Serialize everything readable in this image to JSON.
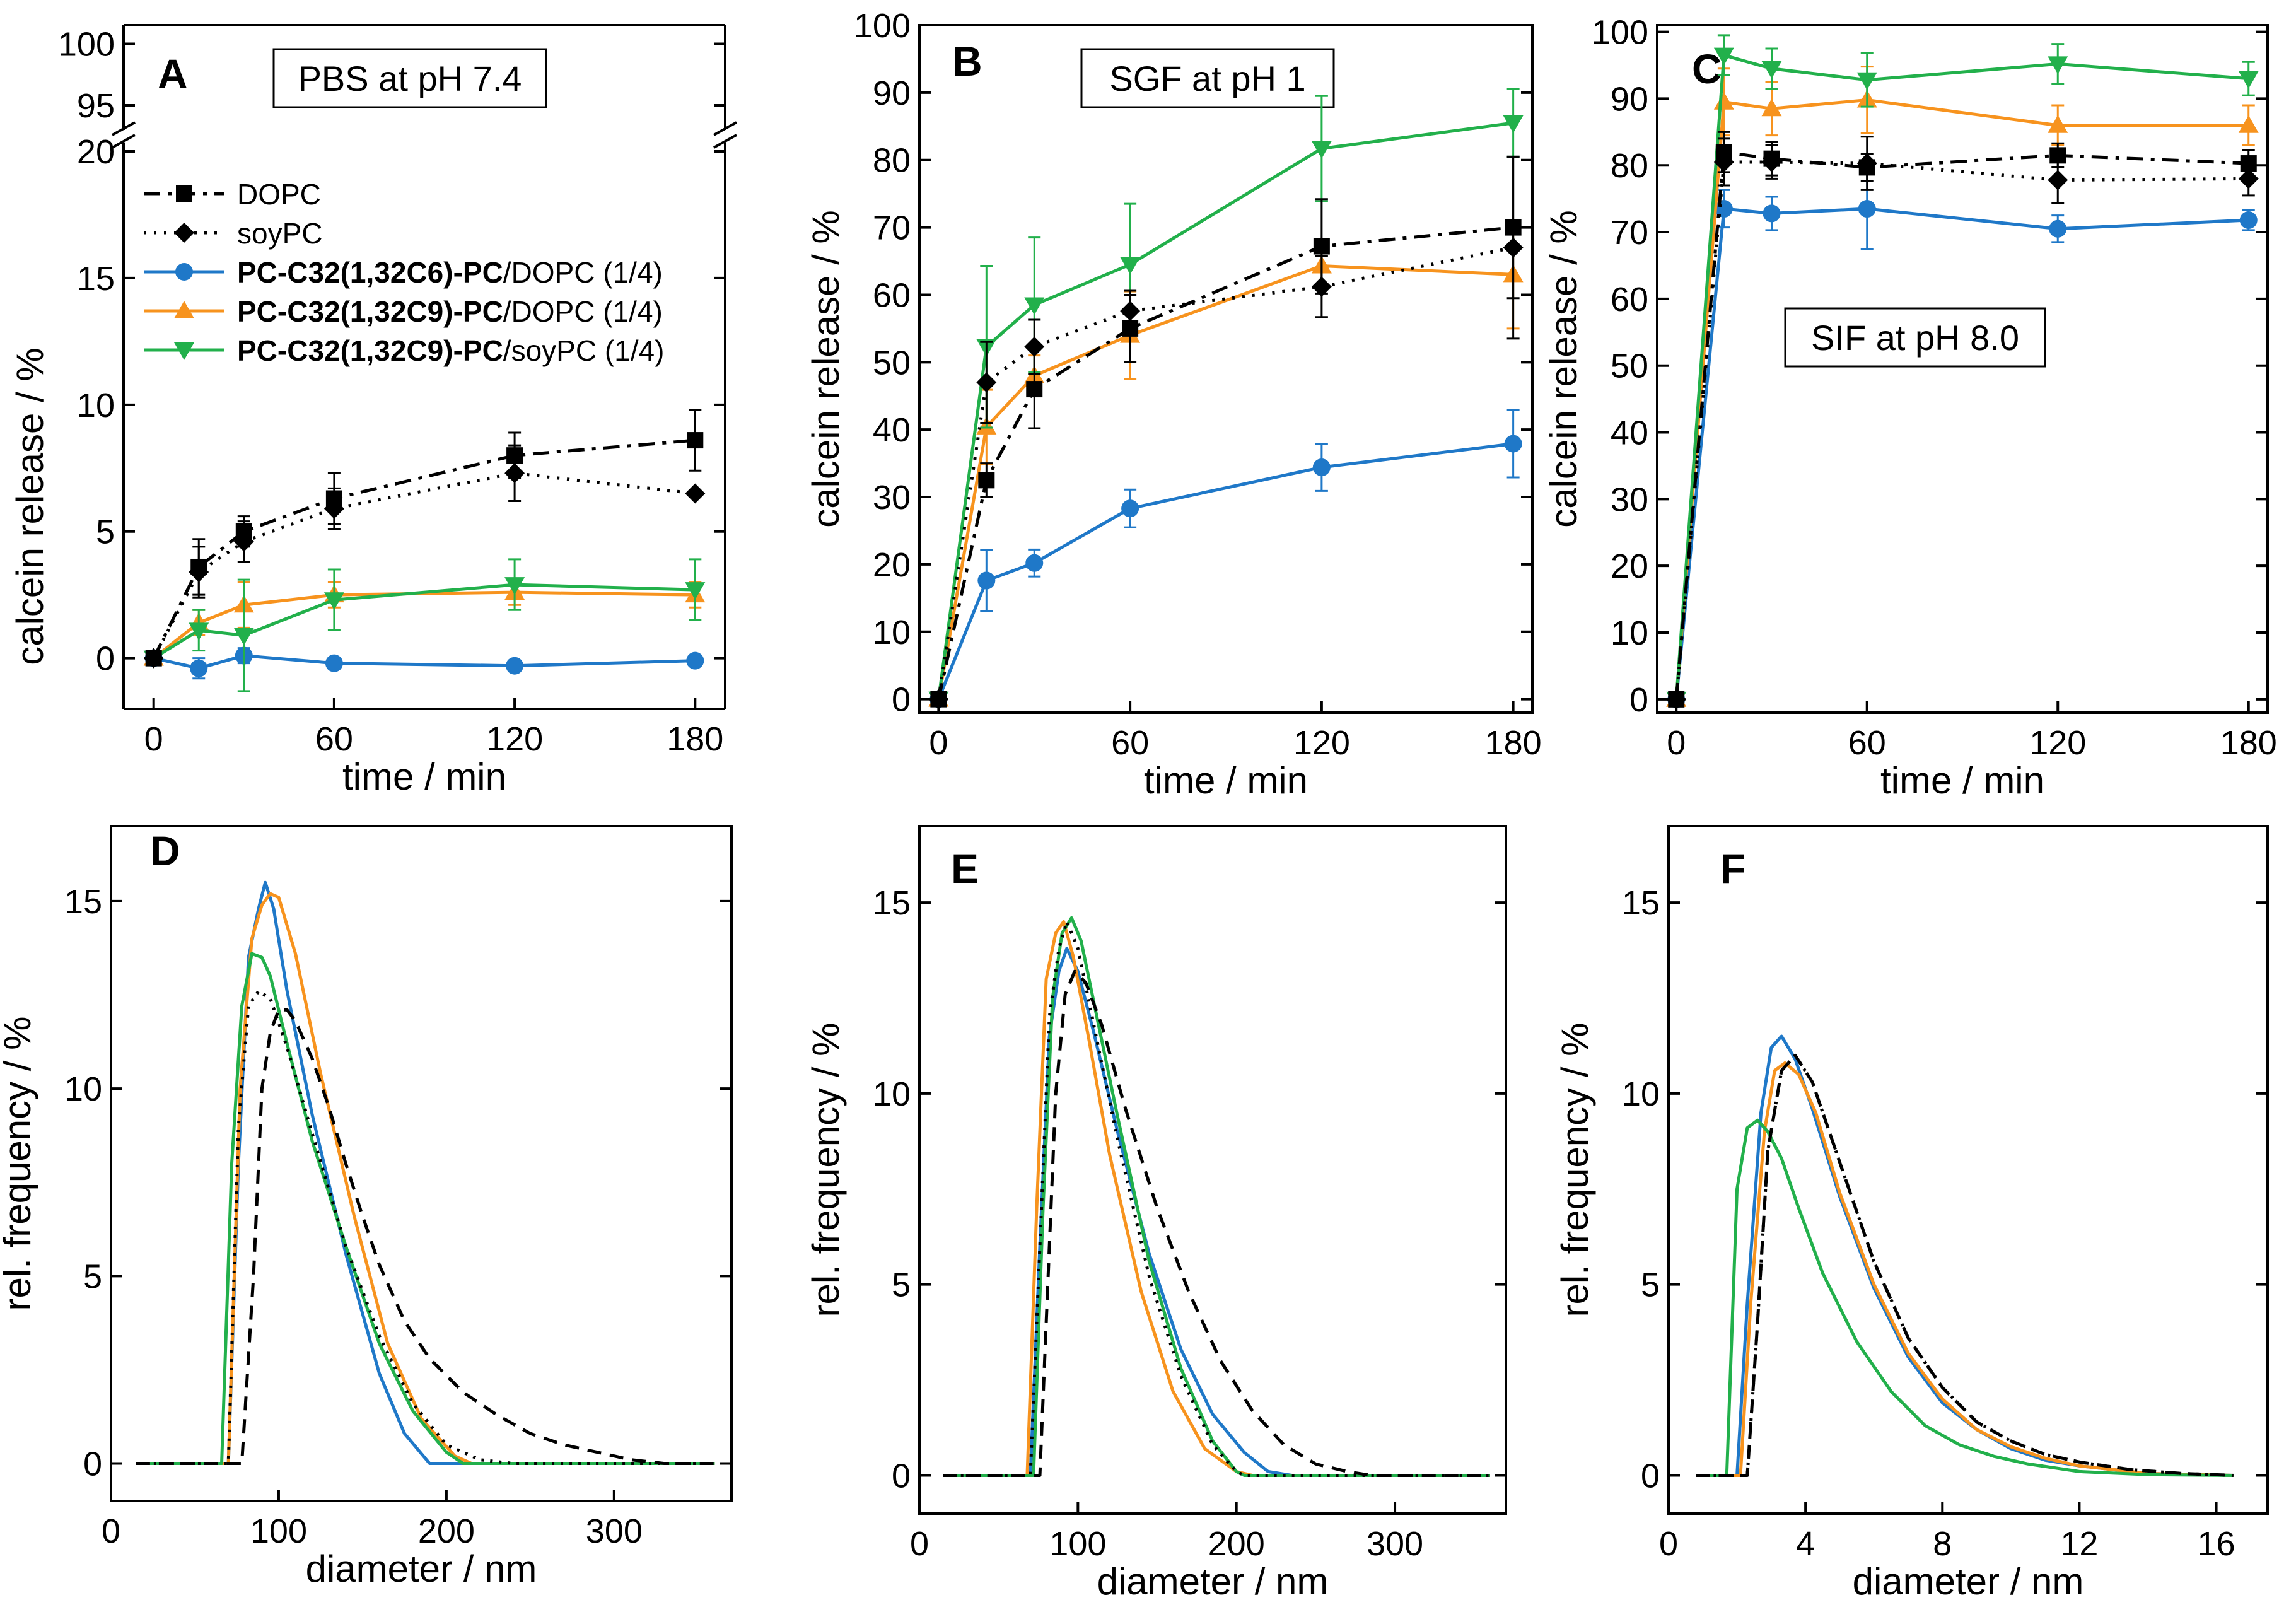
{
  "colors": {
    "black": "#000000",
    "blue": "#1f78c8",
    "orange": "#f7931e",
    "green": "#22b04b"
  },
  "series_names": [
    "DOPC",
    "soyPC",
    "PC-C32(1,32C6)-PC/DOPC (1/4)",
    "PC-C32(1,32C9)-PC/DOPC (1/4)",
    "PC-C32(1,32C9)-PC/soyPC (1/4)"
  ],
  "legend": [
    {
      "bold": "",
      "rest": "DOPC",
      "color": "#000000",
      "dash": "dashdot",
      "marker": "square"
    },
    {
      "bold": "",
      "rest": "soyPC",
      "color": "#000000",
      "dash": "dot",
      "marker": "diamond"
    },
    {
      "bold": "PC-C32(1,32C6)-PC",
      "rest": "/DOPC (1/4)",
      "color": "#1f78c8",
      "dash": "solid",
      "marker": "circle"
    },
    {
      "bold": "PC-C32(1,32C9)-PC",
      "rest": "/DOPC (1/4)",
      "color": "#f7931e",
      "dash": "solid",
      "marker": "triangle-up"
    },
    {
      "bold": "PC-C32(1,32C9)-PC",
      "rest": "/soyPC (1/4)",
      "color": "#22b04b",
      "dash": "solid",
      "marker": "triangle-down"
    }
  ],
  "chart_data": [
    {
      "panel": "A",
      "type": "line",
      "title": "PBS at pH 7.4",
      "xlabel": "time / min",
      "ylabel": "calcein release / %",
      "xlim": [
        -10,
        190
      ],
      "xticks": [
        0,
        60,
        120,
        180
      ],
      "ylim": [
        -2,
        20
      ],
      "yticks": [
        0,
        5,
        10,
        15,
        20
      ],
      "ybreak": {
        "upper_range": [
          93,
          101
        ],
        "upper_ticks": [
          95,
          100
        ]
      },
      "x": [
        0,
        15,
        30,
        60,
        120,
        180
      ],
      "series": [
        {
          "name": "DOPC",
          "values": [
            0,
            3.6,
            5.0,
            6.3,
            8.0,
            8.6
          ],
          "err": [
            0,
            1.1,
            0.6,
            1.0,
            0.9,
            1.2
          ]
        },
        {
          "name": "soyPC",
          "values": [
            0,
            3.4,
            4.6,
            5.9,
            7.3,
            6.5
          ],
          "err": [
            0,
            1.0,
            0.8,
            0.8,
            1.1,
            0.0
          ]
        },
        {
          "name": "PC-C32(1,32C6)-PC/DOPC (1/4)",
          "values": [
            0,
            -0.4,
            0.1,
            -0.2,
            -0.3,
            -0.1
          ],
          "err": [
            0,
            0.4,
            0.3,
            0.2,
            0.1,
            0.1
          ]
        },
        {
          "name": "PC-C32(1,32C9)-PC/DOPC (1/4)",
          "values": [
            0,
            1.4,
            2.1,
            2.5,
            2.6,
            2.5
          ],
          "err": [
            0,
            0.5,
            0.9,
            0.5,
            0.5,
            0.5
          ]
        },
        {
          "name": "PC-C32(1,32C9)-PC/soyPC (1/4)",
          "values": [
            0,
            1.1,
            0.9,
            2.3,
            2.9,
            2.7
          ],
          "err": [
            0,
            0.8,
            2.2,
            1.2,
            1.0,
            1.2
          ]
        }
      ]
    },
    {
      "panel": "B",
      "type": "line",
      "title": "SGF at pH 1",
      "xlabel": "time / min",
      "ylabel": "calcein release / %",
      "xlim": [
        -6,
        186
      ],
      "xticks": [
        0,
        60,
        120,
        180
      ],
      "ylim": [
        -2,
        100
      ],
      "yticks": [
        0,
        10,
        20,
        30,
        40,
        50,
        60,
        70,
        80,
        90,
        100
      ],
      "x": [
        0,
        15,
        30,
        60,
        120,
        180
      ],
      "series": [
        {
          "name": "DOPC",
          "values": [
            0,
            32.5,
            46.0,
            55.0,
            67.2,
            70.0
          ],
          "err": [
            0,
            2.5,
            5.8,
            5.0,
            7.0,
            10.5
          ]
        },
        {
          "name": "soyPC",
          "values": [
            0,
            47.0,
            52.3,
            57.6,
            61.2,
            67.0
          ],
          "err": [
            0,
            6.0,
            4.0,
            3.0,
            4.5,
            13.5
          ]
        },
        {
          "name": "PC-C32(1,32C6)-PC/DOPC (1/4)",
          "values": [
            0,
            17.6,
            20.2,
            28.3,
            34.4,
            37.9
          ],
          "err": [
            0,
            4.5,
            2.0,
            2.8,
            3.5,
            5.0
          ]
        },
        {
          "name": "PC-C32(1,32C9)-PC/DOPC (1/4)",
          "values": [
            0,
            40.4,
            48.0,
            54.0,
            64.3,
            63.0
          ],
          "err": [
            0,
            5.5,
            3.0,
            6.5,
            3.0,
            8.0
          ]
        },
        {
          "name": "PC-C32(1,32C9)-PC/soyPC (1/4)",
          "values": [
            0,
            52.3,
            58.5,
            64.5,
            81.7,
            85.5
          ],
          "err": [
            0,
            12.0,
            10.0,
            9.0,
            7.8,
            5.0
          ]
        }
      ]
    },
    {
      "panel": "C",
      "type": "line",
      "title": "SIF at pH 8.0",
      "xlabel": "time / min",
      "ylabel": "calcein release / %",
      "xlim": [
        -6,
        186
      ],
      "xticks": [
        0,
        60,
        120,
        180
      ],
      "ylim": [
        -2,
        101
      ],
      "yticks": [
        0,
        10,
        20,
        30,
        40,
        50,
        60,
        70,
        80,
        90,
        100
      ],
      "x": [
        0,
        15,
        30,
        60,
        120,
        180
      ],
      "series": [
        {
          "name": "DOPC",
          "values": [
            0,
            82.0,
            81.0,
            79.7,
            81.5,
            80.3
          ],
          "err": [
            0,
            3.0,
            2.5,
            2.0,
            1.8,
            2.0
          ]
        },
        {
          "name": "soyPC",
          "values": [
            0,
            80.5,
            80.5,
            80.3,
            77.8,
            78.0
          ],
          "err": [
            0,
            3.5,
            2.5,
            4.0,
            3.5,
            2.5
          ]
        },
        {
          "name": "PC-C32(1,32C6)-PC/DOPC (1/4)",
          "values": [
            0,
            73.5,
            72.8,
            73.5,
            70.5,
            71.8
          ],
          "err": [
            0,
            2.8,
            2.5,
            6.0,
            2.0,
            1.5
          ]
        },
        {
          "name": "PC-C32(1,32C9)-PC/DOPC (1/4)",
          "values": [
            0,
            89.5,
            88.5,
            89.8,
            86.0,
            86.0
          ],
          "err": [
            0,
            5.0,
            4.0,
            5.0,
            3.0,
            3.0
          ]
        },
        {
          "name": "PC-C32(1,32C9)-PC/soyPC (1/4)",
          "values": [
            0,
            96.5,
            94.5,
            92.8,
            95.2,
            93.0
          ],
          "err": [
            0,
            3.0,
            3.0,
            4.0,
            3.0,
            2.5
          ]
        }
      ]
    },
    {
      "panel": "D",
      "type": "line",
      "xlabel": "diameter / nm",
      "ylabel": "rel. frequency / %",
      "xlim": [
        0,
        370
      ],
      "xticks": [
        0,
        100,
        200,
        300
      ],
      "ylim": [
        -1,
        17
      ],
      "yticks": [
        0,
        5,
        10,
        15
      ],
      "series": [
        {
          "name": "DOPC",
          "x": [
            15,
            78,
            85,
            90,
            95,
            100,
            105,
            110,
            120,
            130,
            140,
            150,
            160,
            175,
            190,
            210,
            230,
            250,
            270,
            290,
            310,
            330,
            360
          ],
          "y": [
            0,
            0,
            5,
            10,
            11.5,
            12.1,
            12.1,
            11.8,
            10.8,
            9.5,
            8.0,
            6.6,
            5.3,
            3.8,
            2.8,
            1.9,
            1.3,
            0.8,
            0.5,
            0.3,
            0.1,
            0,
            0
          ]
        },
        {
          "name": "soyPC",
          "x": [
            15,
            70,
            76,
            82,
            88,
            95,
            105,
            120,
            140,
            160,
            180,
            200,
            220,
            240,
            360
          ],
          "y": [
            0,
            0,
            9,
            12.2,
            12.6,
            12.4,
            11.1,
            8.8,
            5.8,
            3.4,
            1.6,
            0.5,
            0.1,
            0,
            0
          ]
        },
        {
          "name": "PC-C32(1,32C6)-PC/DOPC (1/4)",
          "x": [
            15,
            70,
            76,
            82,
            88,
            92,
            97,
            105,
            120,
            140,
            160,
            175,
            190,
            200,
            360
          ],
          "y": [
            0,
            0,
            8,
            13.5,
            14.8,
            15.5,
            14.8,
            12.6,
            9.3,
            5.6,
            2.4,
            0.8,
            0,
            0,
            0
          ]
        },
        {
          "name": "PC-C32(1,32C9)-PC/DOPC (1/4)",
          "x": [
            15,
            70,
            77,
            84,
            90,
            95,
            100,
            110,
            125,
            145,
            165,
            185,
            205,
            215,
            360
          ],
          "y": [
            0,
            0,
            10,
            14.0,
            14.9,
            15.2,
            15.1,
            13.6,
            10.4,
            6.6,
            3.2,
            1.2,
            0.2,
            0,
            0
          ]
        },
        {
          "name": "PC-C32(1,32C9)-PC/soyPC (1/4)",
          "x": [
            15,
            66,
            72,
            78,
            84,
            90,
            95,
            105,
            120,
            140,
            160,
            180,
            200,
            210,
            360
          ],
          "y": [
            0,
            0,
            8,
            12.2,
            13.6,
            13.5,
            13.0,
            11.2,
            8.6,
            5.8,
            3.2,
            1.4,
            0.3,
            0,
            0
          ]
        }
      ]
    },
    {
      "panel": "E",
      "type": "line",
      "xlabel": "diameter / nm",
      "ylabel": "rel. frequency / %",
      "xlim": [
        0,
        370
      ],
      "xticks": [
        0,
        100,
        200,
        300
      ],
      "ylim": [
        -1,
        17
      ],
      "yticks": [
        0,
        5,
        10,
        15
      ],
      "series": [
        {
          "name": "DOPC",
          "x": [
            15,
            76,
            81,
            86,
            92,
            98,
            105,
            115,
            130,
            150,
            170,
            190,
            210,
            230,
            250,
            270,
            285,
            360
          ],
          "y": [
            0,
            0,
            5,
            10,
            12.6,
            13.2,
            12.9,
            11.8,
            9.6,
            7.0,
            4.8,
            3.0,
            1.7,
            0.8,
            0.3,
            0.1,
            0,
            0
          ]
        },
        {
          "name": "soyPC",
          "x": [
            15,
            70,
            76,
            82,
            88,
            93,
            100,
            110,
            125,
            145,
            165,
            185,
            200,
            205,
            360
          ],
          "y": [
            0,
            0,
            6,
            12.0,
            13.8,
            14.5,
            13.8,
            11.8,
            8.8,
            5.2,
            2.6,
            0.8,
            0.1,
            0,
            0
          ]
        },
        {
          "name": "PC-C32(1,32C6)-PC/DOPC (1/4)",
          "x": [
            15,
            70,
            76,
            82,
            88,
            93,
            100,
            110,
            125,
            145,
            165,
            185,
            205,
            220,
            235,
            360
          ],
          "y": [
            0,
            0,
            6,
            11.5,
            13.2,
            13.8,
            13.2,
            11.6,
            9.0,
            5.8,
            3.3,
            1.6,
            0.6,
            0.1,
            0,
            0
          ]
        },
        {
          "name": "PC-C32(1,32C9)-PC/DOPC (1/4)",
          "x": [
            15,
            68,
            74,
            80,
            86,
            91,
            97,
            107,
            120,
            140,
            160,
            180,
            200,
            210,
            360
          ],
          "y": [
            0,
            0,
            7,
            13.0,
            14.2,
            14.5,
            13.6,
            11.4,
            8.4,
            4.8,
            2.2,
            0.7,
            0.1,
            0,
            0
          ]
        },
        {
          "name": "PC-C32(1,32C9)-PC/soyPC (1/4)",
          "x": [
            15,
            72,
            78,
            84,
            90,
            96,
            102,
            110,
            125,
            145,
            165,
            185,
            200,
            205,
            360
          ],
          "y": [
            0,
            0,
            7,
            12.5,
            14.2,
            14.6,
            14.0,
            12.4,
            9.4,
            5.6,
            2.8,
            0.9,
            0.1,
            0,
            0
          ]
        }
      ]
    },
    {
      "panel": "F",
      "type": "line",
      "xlabel": "diameter / nm",
      "ylabel": "rel. frequency / %",
      "xlim": [
        0,
        17.5
      ],
      "xticks": [
        0,
        4,
        8,
        12,
        16
      ],
      "ylim": [
        -1,
        17
      ],
      "yticks": [
        0,
        5,
        10,
        15
      ],
      "series": [
        {
          "name": "DOPC",
          "x": [
            0.8,
            2.3,
            2.6,
            2.9,
            3.3,
            3.7,
            4.2,
            5.0,
            6.0,
            7.0,
            8.0,
            9.0,
            10.0,
            11.0,
            12.0,
            13.5,
            15.0,
            16.5
          ],
          "y": [
            0,
            0,
            4,
            8.5,
            10.6,
            11.0,
            10.3,
            8.2,
            5.6,
            3.6,
            2.3,
            1.4,
            0.9,
            0.55,
            0.35,
            0.15,
            0.05,
            0
          ]
        },
        {
          "name": "soyPC",
          "x": [
            0.8,
            2.3,
            2.6,
            2.9,
            3.3,
            3.7,
            4.2,
            5.0,
            6.0,
            7.0,
            8.0,
            9.0,
            10.0,
            11.0,
            12.0,
            13.5,
            15.0,
            16.5
          ],
          "y": [
            0,
            0,
            4,
            8.5,
            10.6,
            11.0,
            10.3,
            8.2,
            5.6,
            3.6,
            2.3,
            1.4,
            0.9,
            0.55,
            0.35,
            0.15,
            0.05,
            0
          ]
        },
        {
          "name": "PC-C32(1,32C6)-PC/DOPC (1/4)",
          "x": [
            0.8,
            2.0,
            2.3,
            2.7,
            3.0,
            3.3,
            3.7,
            4.2,
            5.0,
            6.0,
            7.0,
            8.0,
            9.0,
            10.0,
            11.0,
            12.0,
            14.0,
            16.5
          ],
          "y": [
            0,
            0,
            4.5,
            9.5,
            11.2,
            11.5,
            10.9,
            9.6,
            7.3,
            4.9,
            3.1,
            1.9,
            1.2,
            0.7,
            0.4,
            0.25,
            0.05,
            0
          ]
        },
        {
          "name": "PC-C32(1,32C9)-PC/DOPC (1/4)",
          "x": [
            0.8,
            2.1,
            2.4,
            2.8,
            3.1,
            3.4,
            3.8,
            4.3,
            5.0,
            6.0,
            7.0,
            8.0,
            9.0,
            10.0,
            11.0,
            12.0,
            14.0,
            16.5
          ],
          "y": [
            0,
            0,
            4.5,
            9.0,
            10.6,
            10.8,
            10.5,
            9.5,
            7.4,
            5.0,
            3.2,
            2.0,
            1.2,
            0.75,
            0.45,
            0.25,
            0.05,
            0
          ]
        },
        {
          "name": "PC-C32(1,32C9)-PC/soyPC (1/4)",
          "x": [
            0.8,
            1.7,
            2.0,
            2.3,
            2.6,
            2.9,
            3.3,
            3.8,
            4.5,
            5.5,
            6.5,
            7.5,
            8.5,
            9.5,
            10.5,
            12.0,
            14.0,
            16.5
          ],
          "y": [
            0,
            0,
            7.5,
            9.1,
            9.3,
            9.0,
            8.3,
            7.0,
            5.3,
            3.5,
            2.2,
            1.3,
            0.8,
            0.5,
            0.3,
            0.1,
            0.02,
            0
          ]
        }
      ]
    }
  ]
}
